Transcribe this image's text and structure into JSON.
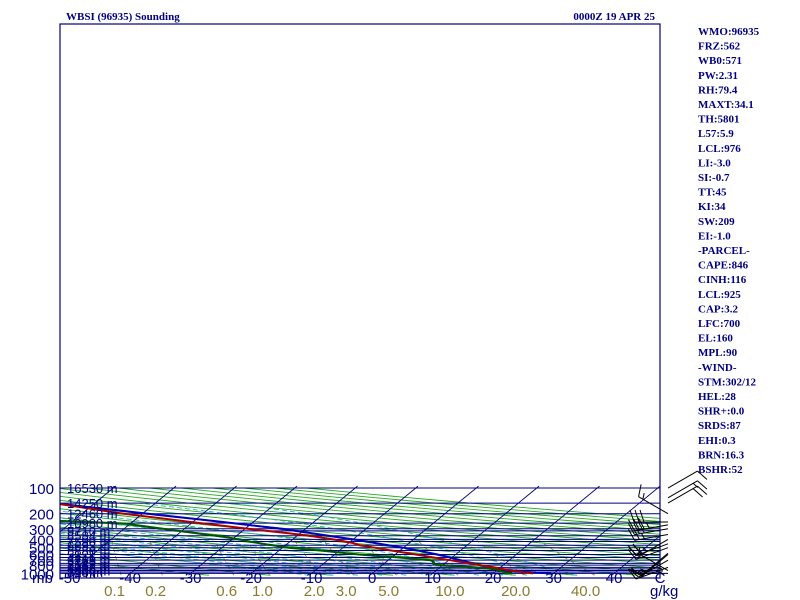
{
  "header": {
    "station_title": "WBSI (96935) Sounding",
    "time_label": "0000Z 19 APR 25"
  },
  "axis": {
    "corner_unit": "mb",
    "mix_unit": "g/kg",
    "temp_min_label": "-50",
    "temp_max_label": "C"
  },
  "colors": {
    "frame": "#000080",
    "isobar": "#000080",
    "isotherm": "#000080",
    "dry_adiabat": "#22aa22",
    "moist_adiabat": "#33aacc",
    "mixing_ratio": "#8a7a30",
    "temperature": "#aa0000",
    "dewpoint": "#005500",
    "parcel": "#0000bb",
    "wind_barb": "#000000"
  },
  "chart_data": {
    "type": "skew-t",
    "title": "WBSI (96935) Sounding",
    "time": "0000Z 19 APR 25",
    "pressure_range_mb": [
      1000,
      100
    ],
    "temperature_range_c": [
      -50,
      40
    ],
    "pressure_labels": [
      "100",
      "200",
      "300",
      "400",
      "500",
      "600",
      "700",
      "800",
      "900",
      "1000"
    ],
    "isobars": [
      {
        "p": 1000,
        "label": "1000",
        "height": "79 m"
      },
      {
        "p": 962,
        "label": "",
        "height": "528 m"
      },
      {
        "p": 925,
        "label": "",
        "height": "1000 m"
      },
      {
        "p": 886,
        "label": "",
        "height": "1496 m"
      },
      {
        "p": 850,
        "label": "",
        "height": "2018 m"
      },
      {
        "p": 800,
        "label": "800",
        "height": "2567 m"
      },
      {
        "p": 762,
        "label": "",
        "height": "3149 m"
      },
      {
        "p": 700,
        "label": "700",
        "height": "3763 m"
      },
      {
        "p": 652,
        "label": "",
        "height": "4416 m"
      },
      {
        "p": 600,
        "label": "600",
        "height": "5121 m"
      },
      {
        "p": 540,
        "label": "",
        "height": "5880 m"
      },
      {
        "p": 500,
        "label": "500",
        "height": ""
      },
      {
        "p": 468,
        "label": "",
        "height": "6693 m"
      },
      {
        "p": 423,
        "label": "",
        "height": "7590 m"
      },
      {
        "p": 400,
        "label": "400",
        "height": ""
      },
      {
        "p": 362,
        "label": "",
        "height": "8584 m"
      },
      {
        "p": 318,
        "label": "",
        "height": "9710 m"
      },
      {
        "p": 300,
        "label": "300",
        "height": ""
      },
      {
        "p": 258,
        "label": "",
        "height": "10980 m"
      },
      {
        "p": 200,
        "label": "200",
        "height": "12460 m"
      },
      {
        "p": 150,
        "label": "",
        "height": "14250 m"
      },
      {
        "p": 100,
        "label": "100",
        "height": "16530 m"
      }
    ],
    "temperature_ticks": [
      "-50",
      "-40",
      "-30",
      "-20",
      "-10",
      "0",
      "10",
      "20",
      "30",
      "40"
    ],
    "mixing_ratio_labels": [
      "0.1",
      "0.2",
      "0.6",
      "1.0",
      "2.0",
      "3.0",
      "5.0",
      "10.0",
      "20.0",
      "40.0"
    ],
    "mixing_ratio_values": [
      0.1,
      0.2,
      0.6,
      1.0,
      2.0,
      3.0,
      5.0,
      10.0,
      20.0,
      40.0
    ],
    "temperature_profile": [
      {
        "p": 1000,
        "t": 26.6
      },
      {
        "p": 962,
        "t": 24.4
      },
      {
        "p": 925,
        "t": 22.3
      },
      {
        "p": 900,
        "t": 21.3
      },
      {
        "p": 886,
        "t": 20.5
      },
      {
        "p": 850,
        "t": 19.0
      },
      {
        "p": 800,
        "t": 16.2
      },
      {
        "p": 762,
        "t": 14.0
      },
      {
        "p": 700,
        "t": 10.2
      },
      {
        "p": 600,
        "t": 3.4
      },
      {
        "p": 540,
        "t": -1.3
      },
      {
        "p": 500,
        "t": -4.7
      },
      {
        "p": 470,
        "t": -7.6
      },
      {
        "p": 440,
        "t": -9.3
      },
      {
        "p": 400,
        "t": -13.3
      },
      {
        "p": 370,
        "t": -17.0
      },
      {
        "p": 340,
        "t": -21.7
      },
      {
        "p": 300,
        "t": -29.5
      },
      {
        "p": 250,
        "t": -40.3
      },
      {
        "p": 200,
        "t": -53.1
      },
      {
        "p": 150,
        "t": -66.9
      },
      {
        "p": 130,
        "t": -73.5
      },
      {
        "p": 115,
        "t": -77.5
      },
      {
        "p": 100,
        "t": -79.0
      }
    ],
    "dewpoint_profile": [
      {
        "p": 1000,
        "t": 23.1
      },
      {
        "p": 962,
        "t": 21.5
      },
      {
        "p": 925,
        "t": 20.2
      },
      {
        "p": 900,
        "t": 19.8
      },
      {
        "p": 850,
        "t": 16.0
      },
      {
        "p": 800,
        "t": 9.0
      },
      {
        "p": 762,
        "t": 8.0
      },
      {
        "p": 740,
        "t": 8.0
      },
      {
        "p": 700,
        "t": 7.0
      },
      {
        "p": 650,
        "t": 1.0
      },
      {
        "p": 600,
        "t": -6.0
      },
      {
        "p": 540,
        "t": -13.0
      },
      {
        "p": 500,
        "t": -19.0
      },
      {
        "p": 460,
        "t": -23.0
      },
      {
        "p": 420,
        "t": -27.0
      },
      {
        "p": 380,
        "t": -31.0
      },
      {
        "p": 320,
        "t": -40.0
      },
      {
        "p": 260,
        "t": -51.0
      },
      {
        "p": 240,
        "t": -64.0
      },
      {
        "p": 200,
        "t": -74.0
      },
      {
        "p": 180,
        "t": -78.0
      },
      {
        "p": 150,
        "t": -84.0
      },
      {
        "p": 130,
        "t": -87.0
      },
      {
        "p": 100,
        "t": -89.0
      }
    ],
    "parcel_profile": [
      {
        "p": 1000,
        "t": 29.5
      },
      {
        "p": 925,
        "t": 20.5
      },
      {
        "p": 850,
        "t": 18.0
      },
      {
        "p": 700,
        "t": 12.0
      },
      {
        "p": 600,
        "t": 7.0
      },
      {
        "p": 500,
        "t": 0.0
      },
      {
        "p": 400,
        "t": -10.0
      },
      {
        "p": 300,
        "t": -24.0
      },
      {
        "p": 250,
        "t": -35.0
      },
      {
        "p": 200,
        "t": -49.0
      },
      {
        "p": 150,
        "t": -67.0
      },
      {
        "p": 120,
        "t": -79.0
      },
      {
        "p": 100,
        "t": -88.0
      }
    ],
    "wind_barbs": [
      {
        "p": 1000,
        "dir": 270,
        "kt": 5
      },
      {
        "p": 925,
        "dir": 300,
        "kt": 5
      },
      {
        "p": 850,
        "dir": 250,
        "kt": 10
      },
      {
        "p": 700,
        "dir": 240,
        "kt": 15
      },
      {
        "p": 600,
        "dir": 230,
        "kt": 15
      },
      {
        "p": 580,
        "dir": 230,
        "kt": 15
      },
      {
        "p": 500,
        "dir": 250,
        "kt": 15
      },
      {
        "p": 450,
        "dir": 250,
        "kt": 20
      },
      {
        "p": 400,
        "dir": 240,
        "kt": 25
      },
      {
        "p": 350,
        "dir": 260,
        "kt": 25
      },
      {
        "p": 300,
        "dir": 260,
        "kt": 30
      },
      {
        "p": 270,
        "dir": 260,
        "kt": 35
      },
      {
        "p": 250,
        "dir": 270,
        "kt": 30
      },
      {
        "p": 200,
        "dir": 300,
        "kt": 15
      },
      {
        "p": 150,
        "dir": 60,
        "kt": 20
      },
      {
        "p": 130,
        "dir": 60,
        "kt": 15
      },
      {
        "p": 100,
        "dir": 60,
        "kt": 10
      }
    ]
  },
  "indices": [
    "WMO:96935",
    "FRZ:562",
    "WB0:571",
    "PW:2.31",
    "RH:79.4",
    "MAXT:34.1",
    "TH:5801",
    "L57:5.9",
    "LCL:976",
    "LI:-3.0",
    "SI:-0.7",
    "TT:45",
    "KI:34",
    "SW:209",
    "EI:-1.0",
    "-PARCEL-",
    "CAPE:846",
    "CINH:116",
    "LCL:925",
    "CAP:3.2",
    "LFC:700",
    "EL:160",
    "MPL:90",
    "-WIND-",
    "STM:302/12",
    "HEL:28",
    "SHR+:0.0",
    "SRDS:87",
    "EHI:0.3",
    "BRN:16.3",
    "BSHR:52"
  ]
}
